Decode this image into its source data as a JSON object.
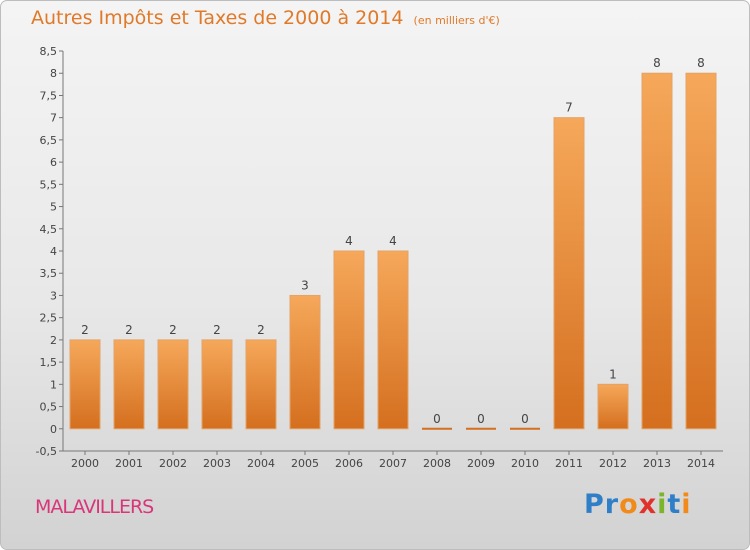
{
  "header": {
    "title": "Autres Impôts et Taxes de 2000 à 2014",
    "subtitle": "(en milliers d'€)"
  },
  "commune": "MALAVILLERS",
  "logo": {
    "text": "Proxiti",
    "letters": [
      {
        "ch": "P",
        "color": "#2f7fc8"
      },
      {
        "ch": "r",
        "color": "#2f7fc8"
      },
      {
        "ch": "o",
        "color": "#f28a1a"
      },
      {
        "ch": "x",
        "color": "#e0312a"
      },
      {
        "ch": "i",
        "color": "#7ab52a"
      },
      {
        "ch": "t",
        "color": "#2f7fc8"
      },
      {
        "ch": "i",
        "color": "#f28a1a"
      }
    ]
  },
  "colors": {
    "bar_light": "#f6a85a",
    "bar_dark": "#d46f1f",
    "title": "#e07a2a",
    "commune": "#d9367a"
  },
  "chart_data": {
    "type": "bar",
    "categories": [
      "2000",
      "2001",
      "2002",
      "2003",
      "2004",
      "2005",
      "2006",
      "2007",
      "2008",
      "2009",
      "2010",
      "2011",
      "2012",
      "2013",
      "2014"
    ],
    "values": [
      2,
      2,
      2,
      2,
      2,
      3,
      4,
      4,
      0,
      0,
      0,
      7,
      1,
      8,
      8
    ],
    "data_labels": [
      "2",
      "2",
      "2",
      "2",
      "2",
      "3",
      "4",
      "4",
      "0",
      "0",
      "0",
      "7",
      "1",
      "8",
      "8"
    ],
    "title": "Autres Impôts et Taxes de 2000 à 2014",
    "subtitle": "(en milliers d'€)",
    "xlabel": "",
    "ylabel": "",
    "ylim": [
      -0.5,
      8.5
    ],
    "yticks": [
      -0.5,
      0,
      0.5,
      1,
      1.5,
      2,
      2.5,
      3,
      3.5,
      4,
      4.5,
      5,
      5.5,
      6,
      6.5,
      7,
      7.5,
      8,
      8.5
    ],
    "ytick_labels": [
      "-0,5",
      "0",
      "0,5",
      "1",
      "1,5",
      "2",
      "2,5",
      "3",
      "3,5",
      "4",
      "4,5",
      "5",
      "5,5",
      "6",
      "6,5",
      "7",
      "7,5",
      "8",
      "8,5"
    ],
    "grid": false,
    "legend": "none"
  }
}
